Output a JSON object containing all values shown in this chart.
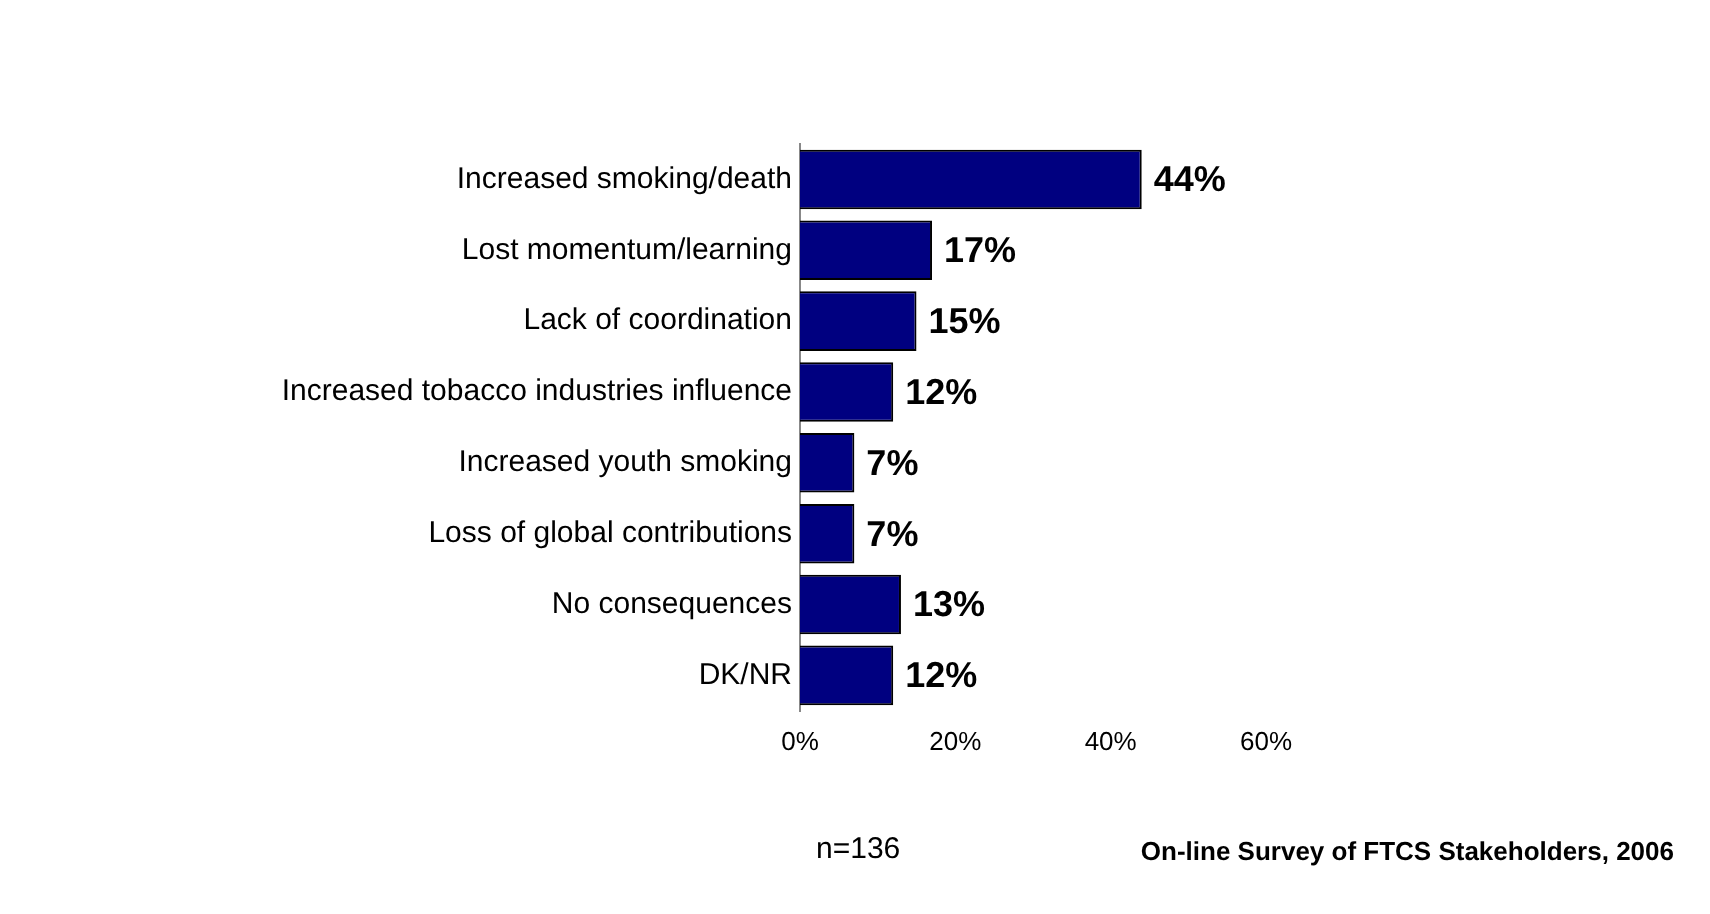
{
  "chart_data": {
    "type": "bar",
    "orientation": "horizontal",
    "categories": [
      "Increased smoking/death",
      "Lost momentum/learning",
      "Lack of coordination",
      "Increased tobacco industries influence",
      "Increased youth smoking",
      "Loss of global contributions",
      "No consequences",
      "DK/NR"
    ],
    "values": [
      44,
      17,
      15,
      12,
      7,
      7,
      13,
      12
    ],
    "value_labels": [
      "44%",
      "17%",
      "15%",
      "12%",
      "7%",
      "7%",
      "13%",
      "12%"
    ],
    "color": "#000080",
    "xlim": [
      0,
      60
    ],
    "xticks": [
      {
        "value": 0,
        "label": "0%"
      },
      {
        "value": 20,
        "label": "20%"
      },
      {
        "value": 40,
        "label": "40%"
      },
      {
        "value": 60,
        "label": "60%"
      }
    ],
    "grid": false,
    "legend": false,
    "annotations": [
      "n=136",
      "On-line Survey of FTCS Stakeholders, 2006"
    ]
  }
}
